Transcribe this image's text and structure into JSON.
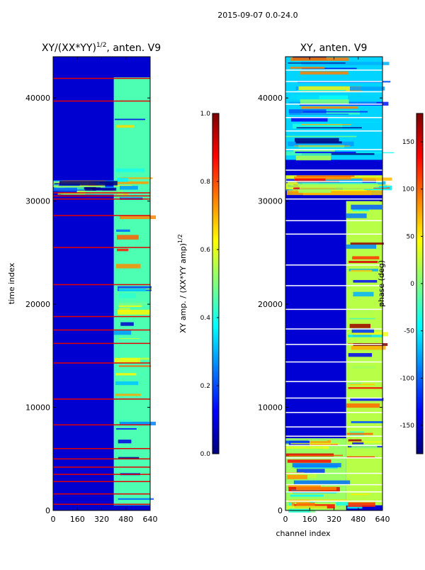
{
  "figure_title": "2015-09-07 0.0-24.0",
  "colors": {
    "jet": [
      "#00007f",
      "#0000ff",
      "#007fff",
      "#00ffff",
      "#7fff7f",
      "#ffff00",
      "#ff7f00",
      "#ff0000",
      "#7f0000"
    ],
    "frame": "#000000",
    "background": "#ffffff"
  },
  "chart_data": [
    {
      "type": "heatmap",
      "title": "XY/(XX*YY)",
      "title_exponent": "1/2",
      "title_suffix": ", anten. V9",
      "xlabel": "",
      "ylabel": "time index",
      "xlim": [
        0,
        640
      ],
      "ylim": [
        0,
        44000
      ],
      "x_ticks": [
        0,
        160,
        320,
        480,
        640
      ],
      "y_ticks": [
        0,
        10000,
        20000,
        30000,
        40000
      ],
      "colorbar": {
        "label": "XY amp. / (XX*YY amp)",
        "label_exponent": "1/2",
        "range": [
          0.0,
          1.0
        ],
        "ticks": [
          "0.0",
          "0.2",
          "0.4",
          "0.6",
          "0.8",
          "1.0"
        ],
        "tick_values": [
          0.0,
          0.2,
          0.4,
          0.6,
          0.8,
          1.0
        ]
      },
      "regions": [
        {
          "x": [
            0,
            640
          ],
          "y": [
            0,
            44000
          ],
          "value": 0.08
        },
        {
          "x": [
            400,
            640
          ],
          "y": [
            500,
            42000
          ],
          "value": 0.45
        },
        {
          "x": [
            0,
            400
          ],
          "y": [
            31000,
            32000
          ],
          "value": 0.3
        }
      ],
      "flagged_rows": [
        600,
        1600,
        2800,
        3500,
        4200,
        5000,
        6000,
        8300,
        10800,
        14300,
        16200,
        17500,
        18800,
        21900,
        25500,
        28600,
        30200,
        30500,
        30800,
        39700,
        41900
      ],
      "flagged_value": 0.9
    },
    {
      "type": "heatmap",
      "title": "XY, anten. V9",
      "xlabel": "channel index",
      "ylabel": "",
      "xlim": [
        0,
        640
      ],
      "ylim": [
        0,
        44000
      ],
      "x_ticks": [
        0,
        160,
        320,
        480,
        640
      ],
      "y_ticks": [
        0,
        10000,
        20000,
        30000,
        40000
      ],
      "colorbar": {
        "label": "phase (deg)",
        "range": [
          -180,
          180
        ],
        "ticks": [
          "-150",
          "-100",
          "-50",
          "0",
          "50",
          "100",
          "150"
        ],
        "tick_values": [
          -150,
          -100,
          -50,
          0,
          50,
          100,
          150
        ]
      },
      "regions": [
        {
          "x": [
            0,
            640
          ],
          "y": [
            0,
            44000
          ],
          "value": -150
        },
        {
          "x": [
            400,
            640
          ],
          "y": [
            500,
            30000
          ],
          "value": 20
        },
        {
          "x": [
            0,
            400
          ],
          "y": [
            0,
            7000
          ],
          "value": 10
        },
        {
          "x": [
            0,
            640
          ],
          "y": [
            31000,
            32500
          ],
          "value": 30
        },
        {
          "x": [
            0,
            640
          ],
          "y": [
            34000,
            44000
          ],
          "value": -60
        }
      ],
      "flagged_rows": [
        900,
        1800,
        2500,
        3600,
        5100,
        6300,
        7200,
        8100,
        9500,
        10900,
        12500,
        14400,
        16100,
        17600,
        19500,
        21800,
        23800,
        26800,
        28100,
        30200,
        31900,
        33000,
        35000,
        36800,
        38100,
        39400,
        40600,
        41600,
        42700
      ],
      "flagged_value": "blank"
    }
  ]
}
